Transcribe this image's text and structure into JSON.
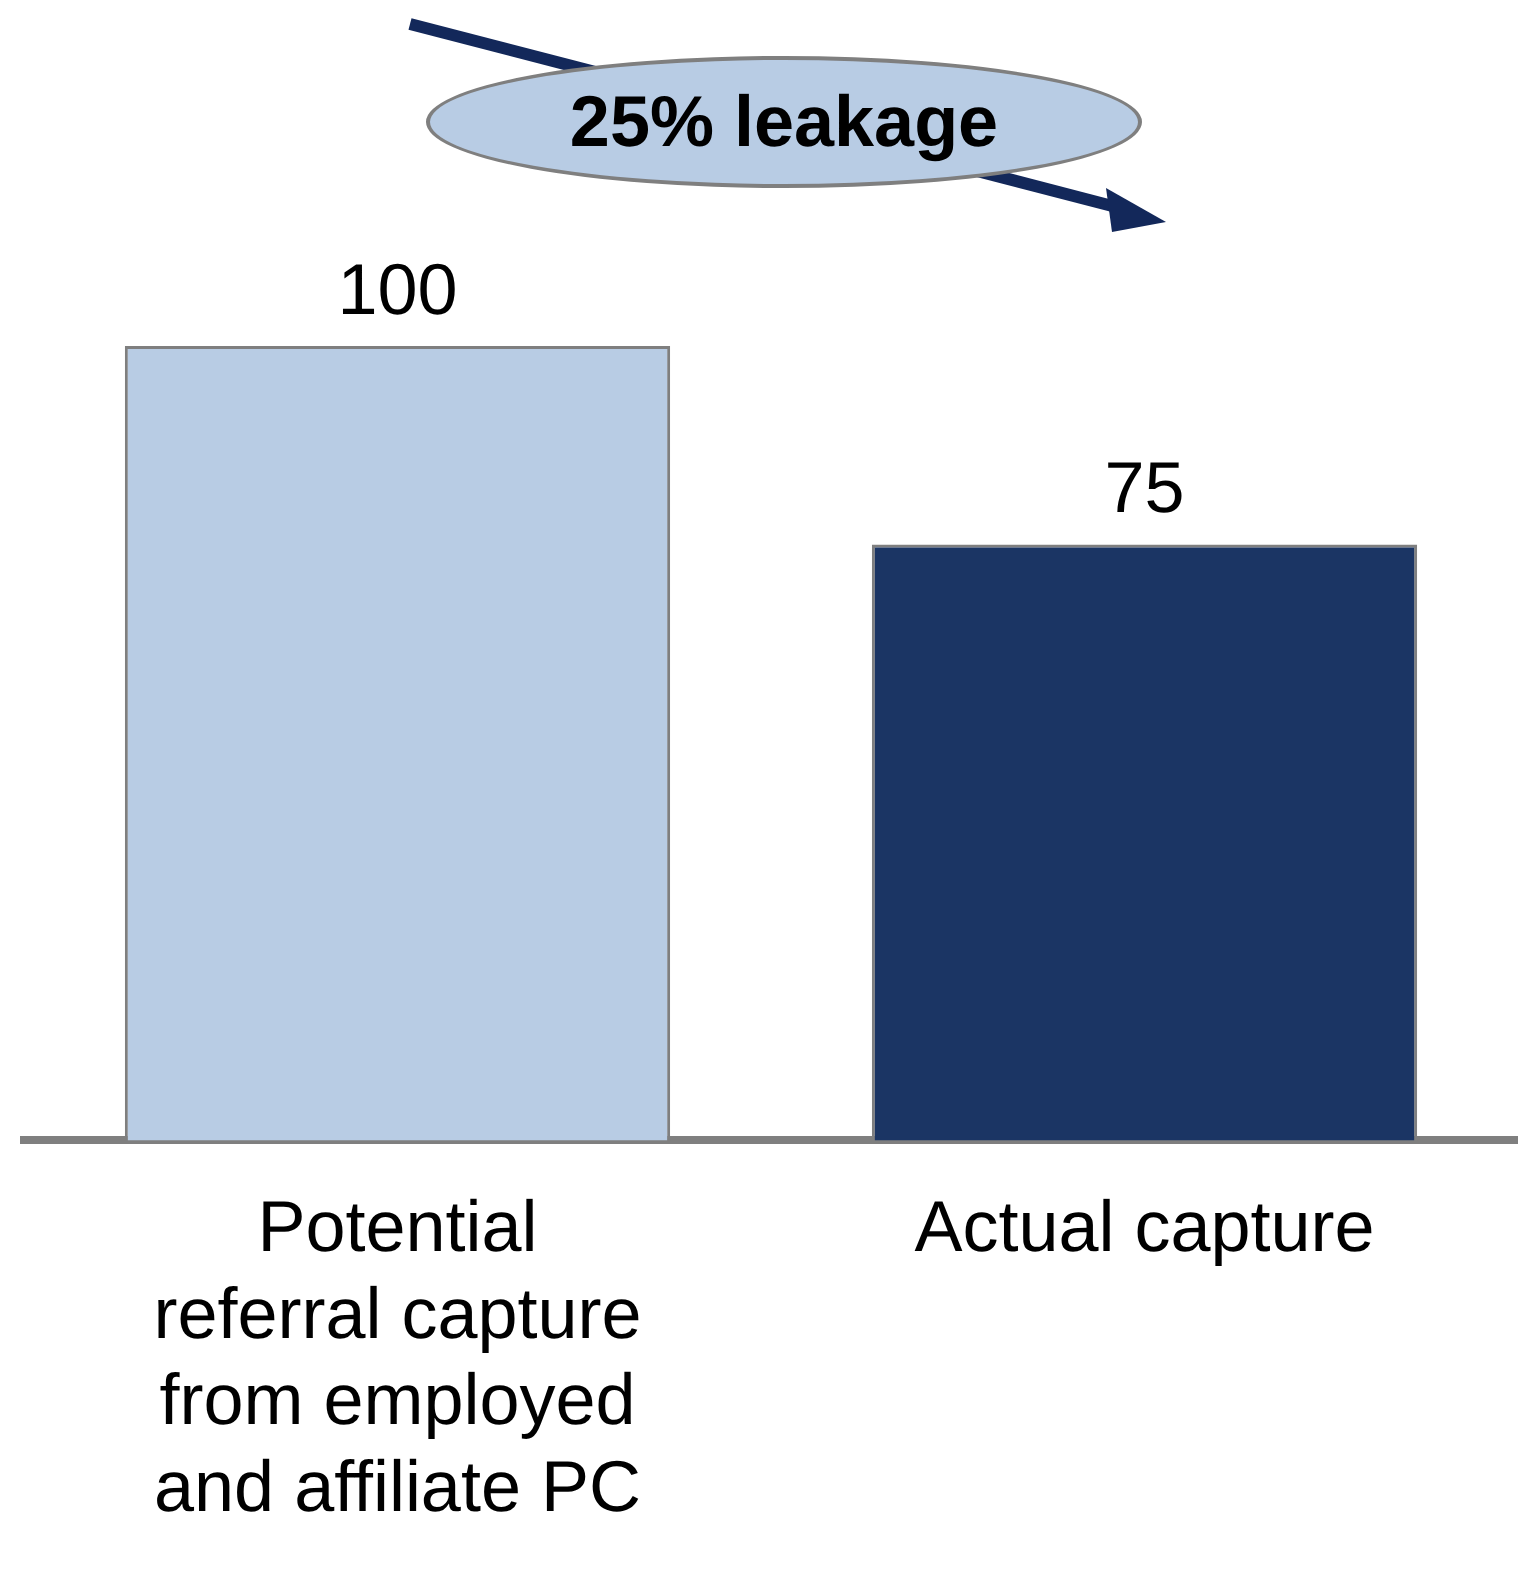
{
  "chart_data": {
    "type": "bar",
    "categories": [
      "Potential referral capture from employed and affiliate PC",
      "Actual capture"
    ],
    "values": [
      100,
      75
    ],
    "colors": [
      "#b8cce4",
      "#1b3564"
    ],
    "data_labels": true,
    "annotations": [
      "25% leakage"
    ],
    "grid": false,
    "legend": false
  }
}
